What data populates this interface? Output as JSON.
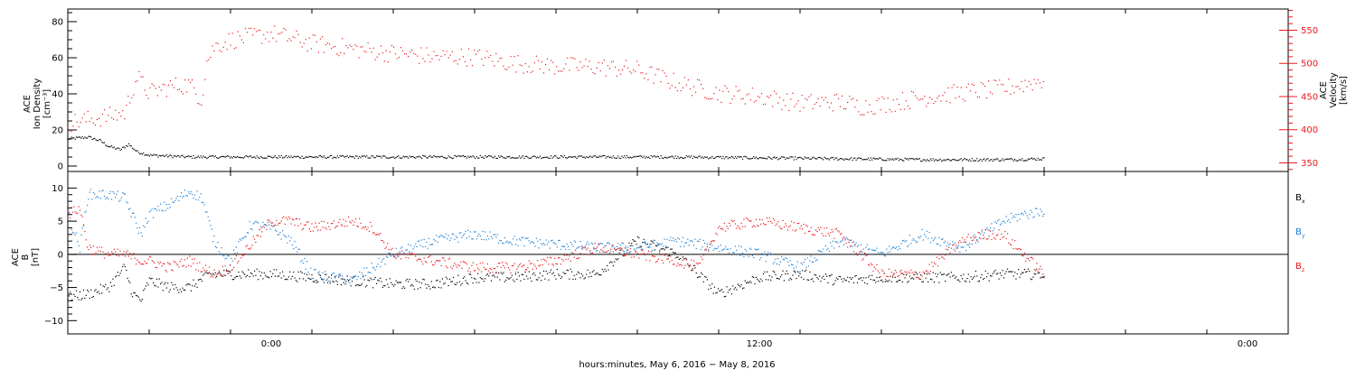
{
  "colors": {
    "black": "#000000",
    "red": "#e8181c",
    "blue": "#1a7fd6",
    "axis": "#000000",
    "right_axis": "#e8181c"
  },
  "xaxis": {
    "label": "hours:minutes,  May  6, 2016  −  May  8, 2016",
    "ticks": [
      {
        "hour": 0,
        "label": "0:00"
      },
      {
        "hour": 12,
        "label": "12:00"
      },
      {
        "hour": 24,
        "label": "0:00"
      }
    ],
    "range_hours": [
      -5.0,
      25.0
    ]
  },
  "chart_data": [
    {
      "type": "scatter",
      "panel": "top",
      "ylabel_left": [
        "ACE",
        "Ion Density",
        "[cm⁻³]"
      ],
      "ylabel_right": [
        "ACE",
        "Velocity",
        "[km/s]"
      ],
      "y_left_ticks": [
        "0",
        "20",
        "40",
        "60",
        "80"
      ],
      "y_left_range": [
        -3,
        87
      ],
      "y_right_ticks": [
        "350",
        "400",
        "450",
        "500",
        "550"
      ],
      "y_right_range": [
        337,
        582
      ],
      "series": [
        {
          "name": "",
          "color": "black",
          "axis": "left",
          "x": [
            -5.0,
            -4.5,
            -4.2,
            -4.0,
            -3.7,
            -3.5,
            -3.3,
            -3.0,
            -2.0,
            -1.0,
            0.0,
            2.0,
            4.0,
            6.0,
            8.0,
            10.0,
            12.0,
            14.0,
            16.0,
            18.0,
            19.0
          ],
          "y": [
            15,
            16,
            14,
            11,
            9,
            12,
            8,
            6,
            5,
            5,
            5,
            5,
            5,
            5,
            5,
            5,
            4.5,
            4,
            3.5,
            3.5,
            4
          ]
        },
        {
          "name": "",
          "color": "red",
          "axis": "right",
          "x": [
            -5.0,
            -4.5,
            -4.0,
            -3.6,
            -3.3,
            -3.0,
            -2.5,
            -2.0,
            -1.7,
            -1.6,
            -1.4,
            -1.0,
            0.0,
            1.0,
            2.0,
            3.0,
            4.0,
            5.0,
            6.0,
            7.0,
            8.0,
            9.0,
            10.0,
            11.0,
            12.0,
            13.0,
            14.0,
            14.5,
            15.0,
            16.0,
            17.0,
            18.0,
            19.0
          ],
          "y": [
            410,
            415,
            420,
            425,
            480,
            455,
            465,
            468,
            445,
            500,
            525,
            535,
            545,
            530,
            522,
            515,
            510,
            510,
            500,
            496,
            495,
            490,
            470,
            455,
            450,
            440,
            442,
            435,
            438,
            448,
            456,
            462,
            475
          ]
        }
      ]
    },
    {
      "type": "scatter",
      "panel": "bottom",
      "ylabel_left": [
        "ACE",
        "B",
        "[nT]"
      ],
      "y_left_ticks": [
        "−10",
        "−5",
        "0",
        "5",
        "10"
      ],
      "y_left_range": [
        -12,
        12.5
      ],
      "legend": [
        {
          "label": "B",
          "sub": "x",
          "color": "black"
        },
        {
          "label": "B",
          "sub": "y",
          "color": "blue"
        },
        {
          "label": "B",
          "sub": "z",
          "color": "red"
        }
      ],
      "legend_position": "right",
      "series": [
        {
          "name": "",
          "color": "black",
          "x": [
            -5.0,
            -4.5,
            -4.0,
            -3.6,
            -3.4,
            -3.2,
            -3.0,
            -2.5,
            -2.0,
            -1.5,
            -1.0,
            0.0,
            1.0,
            2.0,
            3.0,
            4.0,
            5.0,
            6.0,
            7.0,
            8.0,
            9.0,
            10.0,
            10.5,
            11.0,
            12.0,
            13.0,
            14.0,
            15.0,
            16.0,
            17.0,
            18.0,
            19.0
          ],
          "y": [
            -6.5,
            -6,
            -5,
            -2,
            -6,
            -7,
            -4,
            -5,
            -5,
            -3,
            -3,
            -3,
            -3.5,
            -4,
            -4.5,
            -4.5,
            -3.5,
            -3.5,
            -3,
            -3,
            2,
            0,
            -3,
            -6,
            -3.5,
            -3,
            -4,
            -3.5,
            -3.5,
            -3.5,
            -3,
            -3
          ]
        },
        {
          "name": "",
          "color": "blue",
          "x": [
            -5.0,
            -4.7,
            -4.5,
            -4.0,
            -3.6,
            -3.2,
            -3.0,
            -2.5,
            -2.0,
            -1.7,
            -1.4,
            -1.0,
            -0.5,
            0.0,
            0.5,
            1.0,
            2.0,
            3.0,
            4.0,
            5.0,
            6.0,
            7.0,
            8.0,
            9.0,
            10.0,
            11.0,
            12.0,
            13.0,
            14.0,
            15.0,
            16.0,
            17.0,
            18.0,
            18.5,
            19.0
          ],
          "y": [
            6,
            1,
            9,
            9,
            8.5,
            3,
            6,
            7.5,
            9.5,
            8.5,
            2,
            -1,
            4.5,
            4,
            2,
            -3,
            -4,
            0,
            2,
            3,
            2,
            1.5,
            1,
            1,
            2,
            1,
            0,
            -2,
            2,
            0,
            3,
            1,
            5,
            6,
            6.5
          ]
        },
        {
          "name": "",
          "color": "red",
          "x": [
            -5.0,
            -4.7,
            -4.5,
            -4.0,
            -3.6,
            -3.2,
            -3.0,
            -2.5,
            -2.0,
            -1.7,
            -1.4,
            -1.0,
            0.0,
            0.5,
            1.0,
            2.0,
            2.5,
            3.0,
            4.0,
            5.0,
            6.0,
            7.0,
            8.0,
            9.0,
            10.0,
            10.5,
            11.0,
            12.0,
            13.0,
            14.0,
            15.0,
            16.0,
            17.0,
            17.5,
            18.0,
            19.0
          ],
          "y": [
            6,
            7,
            1,
            0,
            0,
            -1,
            -1,
            -2,
            -1,
            -2,
            -3,
            -2,
            5,
            5,
            4,
            5,
            4,
            0,
            -1,
            -2,
            -2,
            -1,
            1,
            0,
            -1,
            -2,
            4,
            5,
            4,
            3,
            -3,
            -3,
            2,
            3,
            3,
            -3
          ]
        }
      ]
    }
  ]
}
